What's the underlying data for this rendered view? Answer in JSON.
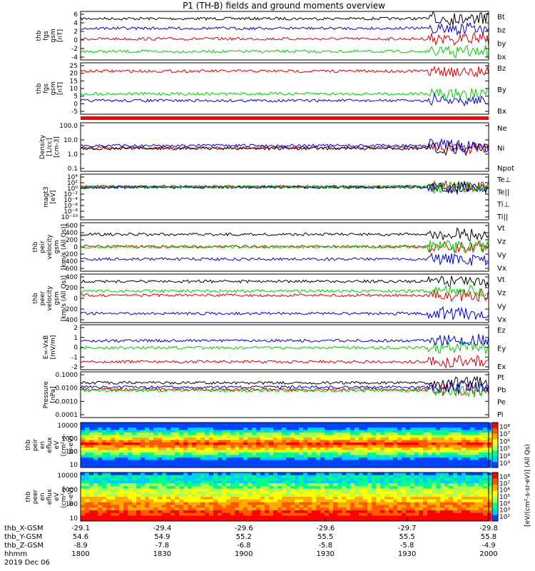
{
  "title": "P1 (TH-B) fields and ground moments overview",
  "colors": {
    "black": "#000000",
    "red": "#dd0000",
    "green": "#00cc00",
    "blue": "#0000dd"
  },
  "chart_data": [
    {
      "type": "line",
      "id": "fgs-gsm",
      "ylabel": [
        "thb",
        "fgs",
        "gsm",
        "[nT]"
      ],
      "yticks": [
        "6",
        "4",
        "2",
        "0",
        "-2",
        "-4"
      ],
      "ylim": [
        -5,
        6.5
      ],
      "series": [
        {
          "name": "Bt",
          "color": "#000000",
          "level": 4.8
        },
        {
          "name": "bz",
          "color": "#dd0000",
          "level": 0.0
        },
        {
          "name": "by",
          "color": "#00cc00",
          "level": -3.0
        },
        {
          "name": "bx",
          "color": "#0000dd",
          "level": 2.5
        }
      ]
    },
    {
      "type": "line",
      "id": "fgs-gsm-2",
      "ylabel": [
        "thb",
        "fgs",
        "gsm",
        "[nT]"
      ],
      "yticks": [
        "25",
        "20",
        "15",
        "10",
        "5",
        "0",
        "-5"
      ],
      "ylim": [
        -8,
        26
      ],
      "series": [
        {
          "name": "Bz",
          "color": "#dd0000",
          "level": 20.5
        },
        {
          "name": "By",
          "color": "#00cc00",
          "level": 5.5
        },
        {
          "name": "Bx",
          "color": "#0000dd",
          "level": 1.0
        }
      ]
    },
    {
      "type": "line",
      "id": "density",
      "ylabel": [
        "Density",
        "[1/cc]",
        "[cm-3]"
      ],
      "yticks": [
        "100.0",
        "10.0",
        "1.0",
        "0.1"
      ],
      "ylim": [
        0.05,
        300
      ],
      "series": [
        {
          "name": "Ne",
          "color": "#dd0000",
          "level": 3.5
        },
        {
          "name": "Ni",
          "color": "#000000",
          "level": 3.0
        },
        {
          "name": "Npot",
          "color": "#0000dd",
          "level": 5.0
        }
      ]
    },
    {
      "type": "line",
      "id": "temperature",
      "ylabel": [
        "magt3",
        "[eV]"
      ],
      "yticks": [
        "10⁴",
        "10²",
        "10⁰",
        "10⁻²",
        "10⁻⁴",
        "10⁻⁶",
        "10⁻⁸",
        "10⁻¹⁰"
      ],
      "ylim": [
        1e-10,
        100000.0
      ],
      "series": [
        {
          "name": "Te⊥",
          "color": "#dd0000",
          "level": 8
        },
        {
          "name": "Te||",
          "color": "#000000",
          "level": 6
        },
        {
          "name": "Ti⊥",
          "color": "#0000dd",
          "level": 5
        },
        {
          "name": "Ti||",
          "color": "#00cc00",
          "level": 7
        }
      ]
    },
    {
      "type": "line",
      "id": "peir-velocity",
      "ylabel": [
        "thb",
        "peir",
        "velocity",
        "gsm",
        "[km/s (All Qs)]"
      ],
      "yticks": [
        "600",
        "400",
        "200",
        "0",
        "-200",
        "-400",
        "-600"
      ],
      "ylim": [
        -600,
        600
      ],
      "series": [
        {
          "name": "Vt",
          "color": "#000000",
          "level": 310
        },
        {
          "name": "Vz",
          "color": "#dd0000",
          "level": 10
        },
        {
          "name": "Vy",
          "color": "#00cc00",
          "level": 0
        },
        {
          "name": "Vx",
          "color": "#0000dd",
          "level": -300
        }
      ]
    },
    {
      "type": "line",
      "id": "peer-velocity",
      "ylabel": [
        "thb",
        "peer",
        "velocity",
        "gsm",
        "[km/s (All Qs)]"
      ],
      "yticks": [
        "400",
        "200",
        "0",
        "-200",
        "-400"
      ],
      "ylim": [
        -400,
        400
      ],
      "series": [
        {
          "name": "Vt",
          "color": "#000000",
          "level": 280
        },
        {
          "name": "Vz",
          "color": "#dd0000",
          "level": 50
        },
        {
          "name": "Vy",
          "color": "#00cc00",
          "level": 120
        },
        {
          "name": "Vx",
          "color": "#0000dd",
          "level": -250
        }
      ]
    },
    {
      "type": "line",
      "id": "efield",
      "ylabel": [
        "E=-VxB",
        "[mV/m]"
      ],
      "yticks": [
        "2",
        "1",
        "0",
        "-1",
        "-2"
      ],
      "ylim": [
        -2,
        2.5
      ],
      "series": [
        {
          "name": "Ez",
          "color": "#dd0000",
          "level": -1.2
        },
        {
          "name": "Ey",
          "color": "#00cc00",
          "level": 0.2
        },
        {
          "name": "Ex",
          "color": "#0000dd",
          "level": 0.9
        }
      ]
    },
    {
      "type": "line",
      "id": "pressure",
      "ylabel": [
        "Pressure",
        "[nPa]"
      ],
      "yticks": [
        "0.1000",
        "0.0100",
        "0.0010",
        "0.0001"
      ],
      "ylim": [
        0.0001,
        0.15
      ],
      "series": [
        {
          "name": "Pt",
          "color": "#000000",
          "level": 0.026
        },
        {
          "name": "Pb",
          "color": "#dd0000",
          "level": 0.009
        },
        {
          "name": "Pe",
          "color": "#00cc00",
          "level": 0.0075
        },
        {
          "name": "Pi",
          "color": "#0000dd",
          "level": 0.013
        }
      ]
    },
    {
      "type": "heatmap",
      "id": "peir-en-eflux",
      "ylabel": [
        "thb",
        "peir",
        "en",
        "eflux",
        "eV",
        "(cm²-s-",
        "sr-eV)"
      ],
      "yticks": [
        "10000",
        "1000",
        "100",
        "10"
      ],
      "ylim": [
        5,
        15000
      ],
      "colorbar_label": "[eV/(cm²-s-sr-eV)] (All Qs)",
      "colorbar_ticks": [
        "10⁸",
        "10⁷",
        "10⁶",
        "10⁵",
        "10⁴",
        "10³"
      ]
    },
    {
      "type": "heatmap",
      "id": "peer-en-eflux",
      "ylabel": [
        "thb",
        "peer",
        "en",
        "eflux",
        "eV",
        "(cm²-s-",
        "sr-eV)"
      ],
      "yticks": [
        "10000",
        "1000",
        "100",
        "10"
      ],
      "ylim": [
        5,
        15000
      ],
      "colorbar_label": "[eV/(cm²-s-sr-eV)] (All Qs)",
      "colorbar_ticks": [
        "10⁸",
        "10⁷",
        "10⁶",
        "10⁵",
        "10⁴",
        "10³",
        "10²"
      ]
    }
  ],
  "x_axis": {
    "row_labels": [
      "thb_X-GSM",
      "thb_Y-GSM",
      "thb_Z-GSM",
      "hhmm",
      "2019 Dec 06"
    ],
    "columns": [
      [
        "-29.1",
        "-29.4",
        "-29.6",
        "-29.6",
        "-29.7",
        "-29.8"
      ],
      [
        "54.6",
        "54.9",
        "55.2",
        "55.5",
        "55.5",
        "55.8"
      ],
      [
        "-8.9",
        "-7.8",
        "-6.8",
        "-5.8",
        "-5.8",
        "-4.9"
      ],
      [
        "1800",
        "1830",
        "1900",
        "1930",
        "1930",
        "2000"
      ]
    ],
    "xlim": [
      1800,
      2000
    ]
  }
}
